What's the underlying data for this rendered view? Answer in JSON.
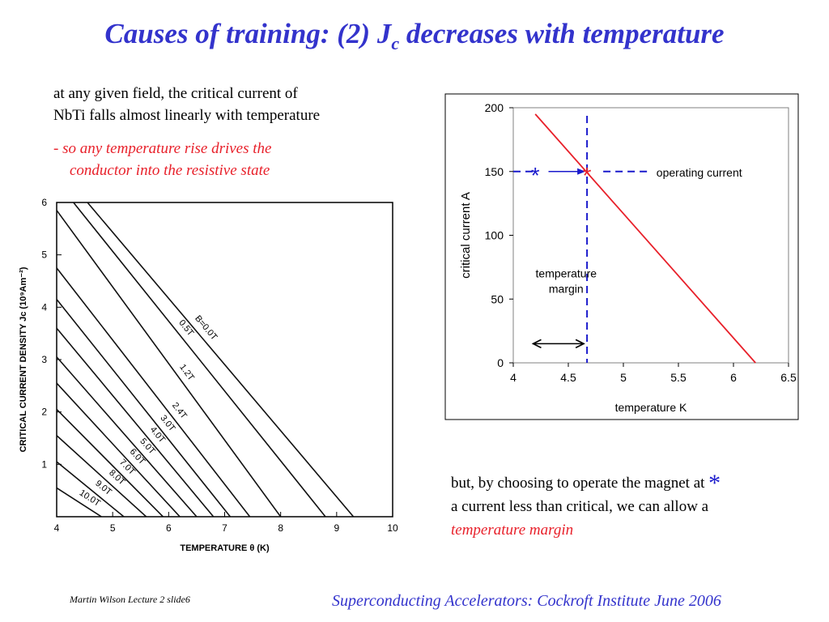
{
  "slide": {
    "title_pre": "Causes of training: (2) J",
    "title_sub": "c",
    "title_post": " decreases with temperature",
    "intro_line1": "at any given field, the critical current of",
    "intro_line2": "NbTi falls almost linearly with temperature",
    "point_line1": "- so any temperature rise drives the",
    "point_line2": "conductor into the resistive state",
    "bottom_line1": "but, by choosing to operate the magnet at",
    "star": "*",
    "bottom_line2": "a current less than critical, we can allow a",
    "bottom_line3": "temperature margin",
    "footer_left": "Martin Wilson Lecture 2 slide6",
    "footer_right": "Superconducting Accelerators:  Cockroft Institute June 2006"
  },
  "colors": {
    "title": "#3333cc",
    "red": "#e8202a",
    "blue": "#1a1acc"
  },
  "chart_data": [
    {
      "type": "line",
      "xlabel": "TEMPERATURE  θ (K)",
      "ylabel": "CRITICAL  CURRENT  DENSITY  Jc (10⁹Am⁻²)",
      "xlim": [
        4,
        10
      ],
      "ylim": [
        0,
        6
      ],
      "xticks": [
        "4",
        "5",
        "6",
        "7",
        "8",
        "9",
        "10"
      ],
      "yticks": [
        "1",
        "2",
        "3",
        "4",
        "5",
        "6"
      ],
      "grid": false,
      "series": [
        {
          "name": "B=0.0T",
          "x": [
            4.55,
            9.3
          ],
          "y": [
            6.0,
            0.0
          ]
        },
        {
          "name": "0.5T",
          "x": [
            4.3,
            8.8
          ],
          "y": [
            6.0,
            0.0
          ]
        },
        {
          "name": "1.2T",
          "x": [
            4.0,
            8.0
          ],
          "y": [
            5.85,
            0.0
          ]
        },
        {
          "name": "2.4T",
          "x": [
            4.0,
            7.45
          ],
          "y": [
            4.75,
            0.0
          ]
        },
        {
          "name": "3.0T",
          "x": [
            4.0,
            7.1
          ],
          "y": [
            4.15,
            0.0
          ]
        },
        {
          "name": "4.0T",
          "x": [
            4.0,
            6.8
          ],
          "y": [
            3.6,
            0.0
          ]
        },
        {
          "name": "5.0T",
          "x": [
            4.0,
            6.5
          ],
          "y": [
            3.05,
            0.0
          ]
        },
        {
          "name": "6.0T",
          "x": [
            4.0,
            6.2
          ],
          "y": [
            2.55,
            0.0
          ]
        },
        {
          "name": "7.0T",
          "x": [
            4.0,
            5.9
          ],
          "y": [
            2.05,
            0.0
          ]
        },
        {
          "name": "8.0T",
          "x": [
            4.0,
            5.6
          ],
          "y": [
            1.55,
            0.0
          ]
        },
        {
          "name": "9.0T",
          "x": [
            4.0,
            5.2
          ],
          "y": [
            1.05,
            0.0
          ]
        },
        {
          "name": "10.0T",
          "x": [
            4.0,
            4.8
          ],
          "y": [
            0.55,
            0.0
          ]
        }
      ]
    },
    {
      "type": "line",
      "xlabel": "temperature K",
      "ylabel": "critical current A",
      "xlim": [
        4,
        6.5
      ],
      "ylim": [
        0,
        200
      ],
      "xticks": [
        "4",
        "4.5",
        "5",
        "5.5",
        "6",
        "6.5"
      ],
      "yticks": [
        "0",
        "50",
        "100",
        "150",
        "200"
      ],
      "grid": false,
      "series": [
        {
          "x": [
            4.2,
            6.2
          ],
          "y": [
            195,
            0
          ]
        }
      ],
      "operating_current": 150,
      "operating_temperature": 4.67,
      "annotations": [
        "operating current",
        "temperature",
        "margin"
      ],
      "star": "*"
    }
  ]
}
